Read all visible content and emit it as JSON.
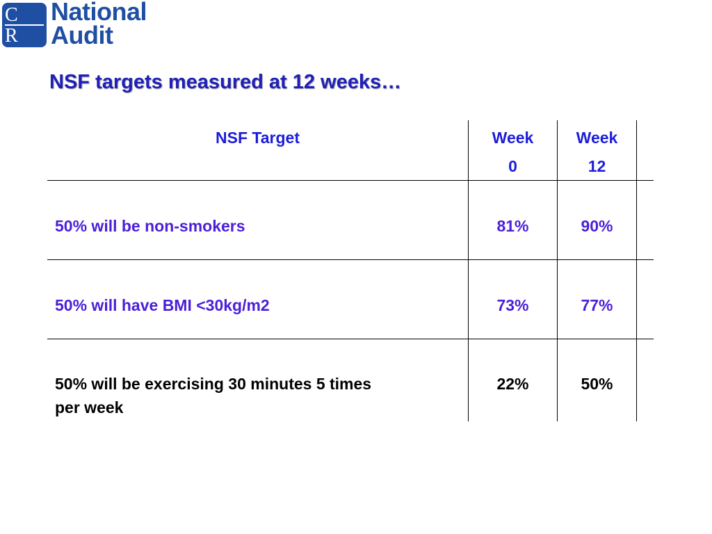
{
  "logo": {
    "letter_top": "C",
    "letter_bottom": "R",
    "line1": "National",
    "line2": "Audit"
  },
  "title": "NSF targets measured at 12 weeks…",
  "table": {
    "headers": {
      "target": "NSF Target",
      "week0_line1": "Week",
      "week0_line2": "0",
      "week12_line1": "Week",
      "week12_line2": "12"
    },
    "rows": [
      {
        "target": "50% will be non-smokers",
        "week0": "81%",
        "week12": "90%"
      },
      {
        "target": "50% will have BMI <30kg/m2",
        "week0": "73%",
        "week12": "77%"
      },
      {
        "target_line1": "50% will be exercising 30 minutes 5 times",
        "target_line2": "per week",
        "week0": "22%",
        "week12": "50%"
      }
    ]
  },
  "colors": {
    "logo_blue": "#1f4fa3",
    "title_blue": "#2020b8",
    "header_blue": "#1d1dd9",
    "row_violet": "#4b1fd8",
    "row_black": "#000000"
  }
}
